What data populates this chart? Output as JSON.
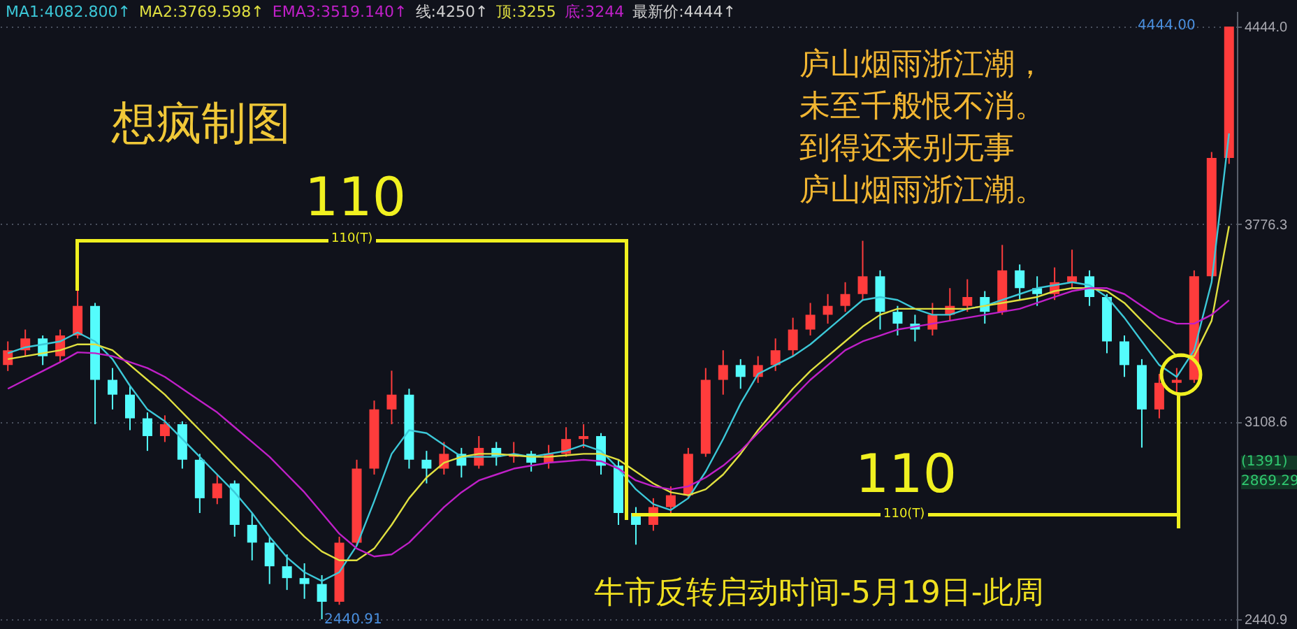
{
  "chart_data": {
    "type": "candlestick",
    "categories": [
      null,
      null,
      null,
      null,
      null,
      null,
      null,
      null,
      null,
      null,
      null,
      null,
      null,
      null,
      null,
      null,
      null,
      null,
      null,
      null,
      null,
      null,
      null,
      null,
      null,
      null,
      null,
      null,
      null,
      null,
      null,
      null,
      null,
      null,
      null,
      null,
      null,
      null,
      null,
      null,
      null,
      null,
      null,
      null,
      null,
      null,
      null,
      null,
      null,
      null,
      null,
      null,
      null,
      null,
      null,
      null,
      null,
      null,
      null,
      null,
      null,
      null,
      null,
      null,
      null,
      null,
      null,
      null,
      null,
      null,
      null
    ],
    "ohlc": [
      [
        3300,
        3380,
        3280,
        3350
      ],
      [
        3350,
        3420,
        3330,
        3390
      ],
      [
        3390,
        3400,
        3300,
        3330
      ],
      [
        3330,
        3420,
        3310,
        3400
      ],
      [
        3400,
        3564,
        3390,
        3500
      ],
      [
        3500,
        3510,
        3100,
        3250
      ],
      [
        3250,
        3290,
        3150,
        3200
      ],
      [
        3200,
        3230,
        3080,
        3120
      ],
      [
        3120,
        3140,
        3010,
        3060
      ],
      [
        3060,
        3130,
        3040,
        3100
      ],
      [
        3100,
        3110,
        2950,
        2980
      ],
      [
        2980,
        3000,
        2800,
        2850
      ],
      [
        2850,
        2930,
        2830,
        2900
      ],
      [
        2900,
        2910,
        2720,
        2760
      ],
      [
        2760,
        2800,
        2640,
        2700
      ],
      [
        2700,
        2720,
        2560,
        2620
      ],
      [
        2620,
        2660,
        2540,
        2580
      ],
      [
        2580,
        2630,
        2510,
        2560
      ],
      [
        2560,
        2590,
        2440.91,
        2500
      ],
      [
        2500,
        2720,
        2490,
        2700
      ],
      [
        2700,
        2980,
        2690,
        2950
      ],
      [
        2950,
        3180,
        2930,
        3150
      ],
      [
        3150,
        3281,
        3100,
        3200
      ],
      [
        3200,
        3220,
        2950,
        2980
      ],
      [
        2980,
        3010,
        2900,
        2950
      ],
      [
        2950,
        3040,
        2930,
        3000
      ],
      [
        3000,
        3020,
        2920,
        2960
      ],
      [
        2960,
        3060,
        2950,
        3020
      ],
      [
        3020,
        3040,
        2960,
        2990
      ],
      [
        2990,
        3040,
        2970,
        3000
      ],
      [
        3000,
        3010,
        2940,
        2970
      ],
      [
        2970,
        3030,
        2950,
        3000
      ],
      [
        3000,
        3090,
        2990,
        3050
      ],
      [
        3050,
        3100,
        3020,
        3060
      ],
      [
        3060,
        3070,
        2930,
        2960
      ],
      [
        2960,
        2980,
        2760,
        2800
      ],
      [
        2800,
        2820,
        2693,
        2760
      ],
      [
        2760,
        2850,
        2740,
        2820
      ],
      [
        2820,
        2890,
        2800,
        2860
      ],
      [
        2860,
        3020,
        2850,
        3000
      ],
      [
        3000,
        3290,
        2990,
        3250
      ],
      [
        3250,
        3350,
        3200,
        3300
      ],
      [
        3300,
        3320,
        3220,
        3260
      ],
      [
        3260,
        3330,
        3240,
        3300
      ],
      [
        3300,
        3390,
        3280,
        3350
      ],
      [
        3350,
        3460,
        3330,
        3420
      ],
      [
        3420,
        3510,
        3400,
        3470
      ],
      [
        3470,
        3540,
        3440,
        3500
      ],
      [
        3500,
        3580,
        3480,
        3540
      ],
      [
        3540,
        3720,
        3520,
        3600
      ],
      [
        3600,
        3620,
        3420,
        3480
      ],
      [
        3480,
        3500,
        3400,
        3440
      ],
      [
        3440,
        3470,
        3380,
        3420
      ],
      [
        3420,
        3510,
        3400,
        3470
      ],
      [
        3470,
        3560,
        3450,
        3500
      ],
      [
        3500,
        3590,
        3480,
        3530
      ],
      [
        3530,
        3550,
        3440,
        3480
      ],
      [
        3480,
        3706,
        3470,
        3620
      ],
      [
        3620,
        3640,
        3520,
        3560
      ],
      [
        3560,
        3600,
        3500,
        3540
      ],
      [
        3540,
        3630,
        3520,
        3580
      ],
      [
        3580,
        3690,
        3560,
        3600
      ],
      [
        3600,
        3620,
        3500,
        3530
      ],
      [
        3530,
        3540,
        3340,
        3380
      ],
      [
        3380,
        3400,
        3260,
        3300
      ],
      [
        3300,
        3320,
        3021,
        3150
      ],
      [
        3150,
        3270,
        3120,
        3240
      ],
      [
        3240,
        3290,
        3200,
        3250
      ],
      [
        3250,
        3620,
        3240,
        3600
      ],
      [
        3600,
        4020,
        3590,
        4000
      ],
      [
        4000,
        4444,
        3980,
        4444
      ]
    ],
    "colors": [
      "#ff3c3c",
      "#ff3c3c",
      "#54fcfc",
      "#ff3c3c",
      "#ff3c3c",
      "#54fcfc",
      "#54fcfc",
      "#54fcfc",
      "#54fcfc",
      "#ff3c3c",
      "#54fcfc",
      "#54fcfc",
      "#ff3c3c",
      "#54fcfc",
      "#54fcfc",
      "#54fcfc",
      "#54fcfc",
      "#54fcfc",
      "#54fcfc",
      "#ff3c3c",
      "#ff3c3c",
      "#ff3c3c",
      "#ff3c3c",
      "#54fcfc",
      "#54fcfc",
      "#ff3c3c",
      "#54fcfc",
      "#ff3c3c",
      "#54fcfc",
      "#ff3c3c",
      "#54fcfc",
      "#ff3c3c",
      "#ff3c3c",
      "#ff3c3c",
      "#54fcfc",
      "#54fcfc",
      "#54fcfc",
      "#ff3c3c",
      "#ff3c3c",
      "#ff3c3c",
      "#ff3c3c",
      "#ff3c3c",
      "#54fcfc",
      "#ff3c3c",
      "#ff3c3c",
      "#ff3c3c",
      "#ff3c3c",
      "#ff3c3c",
      "#ff3c3c",
      "#ff3c3c",
      "#54fcfc",
      "#54fcfc",
      "#54fcfc",
      "#ff3c3c",
      "#ff3c3c",
      "#ff3c3c",
      "#54fcfc",
      "#ff3c3c",
      "#54fcfc",
      "#54fcfc",
      "#ff3c3c",
      "#ff3c3c",
      "#54fcfc",
      "#54fcfc",
      "#54fcfc",
      "#54fcfc",
      "#ff3c3c",
      "#ff3c3c",
      "#ff3c3c",
      "#ff3c3c",
      "#ff3c3c"
    ],
    "series": [
      {
        "name": "MA1:4082.800↑",
        "type": "line",
        "color": "#3cc8d8",
        "values": [
          3340,
          3360,
          3370,
          3380,
          3410,
          3380,
          3320,
          3230,
          3150,
          3110,
          3050,
          2990,
          2930,
          2870,
          2800,
          2720,
          2650,
          2600,
          2570,
          2600,
          2690,
          2840,
          3000,
          3080,
          3070,
          3030,
          2990,
          2990,
          2990,
          3000,
          2990,
          3000,
          3010,
          3030,
          3010,
          2950,
          2880,
          2830,
          2810,
          2850,
          2940,
          3050,
          3170,
          3270,
          3300,
          3330,
          3370,
          3420,
          3470,
          3520,
          3530,
          3520,
          3490,
          3470,
          3470,
          3490,
          3500,
          3520,
          3540,
          3560,
          3570,
          3580,
          3570,
          3530,
          3460,
          3380,
          3300,
          3260,
          3350,
          3580,
          4082.8
        ]
      },
      {
        "name": "MA2:3769.598↑",
        "type": "line",
        "color": "#e0e040",
        "values": [
          3320,
          3330,
          3340,
          3350,
          3370,
          3370,
          3350,
          3300,
          3250,
          3200,
          3140,
          3080,
          3020,
          2960,
          2900,
          2840,
          2780,
          2720,
          2670,
          2640,
          2640,
          2680,
          2760,
          2850,
          2920,
          2970,
          2990,
          3000,
          3000,
          2995,
          2990,
          2990,
          2995,
          3000,
          3000,
          2980,
          2940,
          2900,
          2870,
          2860,
          2880,
          2930,
          3000,
          3080,
          3150,
          3220,
          3280,
          3330,
          3380,
          3430,
          3470,
          3490,
          3490,
          3490,
          3490,
          3490,
          3500,
          3510,
          3520,
          3530,
          3550,
          3560,
          3560,
          3550,
          3510,
          3450,
          3390,
          3330,
          3330,
          3450,
          3769.598
        ]
      },
      {
        "name": "EMA3:3519.140↑",
        "type": "line",
        "color": "#c020c8",
        "values": [
          3220,
          3250,
          3280,
          3310,
          3343,
          3340,
          3330,
          3310,
          3290,
          3260,
          3220,
          3180,
          3140,
          3090,
          3040,
          2990,
          2930,
          2870,
          2800,
          2730,
          2680,
          2653,
          2660,
          2700,
          2760,
          2820,
          2870,
          2910,
          2930,
          2950,
          2960,
          2970,
          2975,
          2980,
          2975,
          2950,
          2910,
          2890,
          2880,
          2890,
          2920,
          2960,
          3010,
          3070,
          3130,
          3190,
          3250,
          3300,
          3350,
          3380,
          3400,
          3420,
          3430,
          3440,
          3450,
          3460,
          3470,
          3480,
          3490,
          3510,
          3530,
          3550,
          3560,
          3560,
          3540,
          3500,
          3460,
          3440,
          3440,
          3470,
          3519.14
        ]
      }
    ],
    "ylim": [
      2408,
      4496
    ],
    "yticks": [
      {
        "value": 2440.9,
        "label": "2440.9"
      },
      {
        "value": 3108.6,
        "label": "3108.6"
      },
      {
        "value": 3776.3,
        "label": "3776.3"
      },
      {
        "value": 4444,
        "label": "4444.0"
      }
    ],
    "grid": "y",
    "legend": "top left",
    "tick_labels": "y",
    "annotations": [
      "想疯制图",
      "庐山烟雨浙江潮，",
      "未至千般恨不消。",
      "到得还来别无事",
      "庐山烟雨浙江潮。",
      "110",
      "110(T)",
      "110",
      "110(T)",
      "牛市反转启动时间-5月19日-此周",
      "4444.00",
      "2440.91",
      "线:4250↑",
      "顶:3255",
      "底:3244",
      "最新价:4444↑",
      "(1391)",
      "2869.29"
    ]
  }
}
